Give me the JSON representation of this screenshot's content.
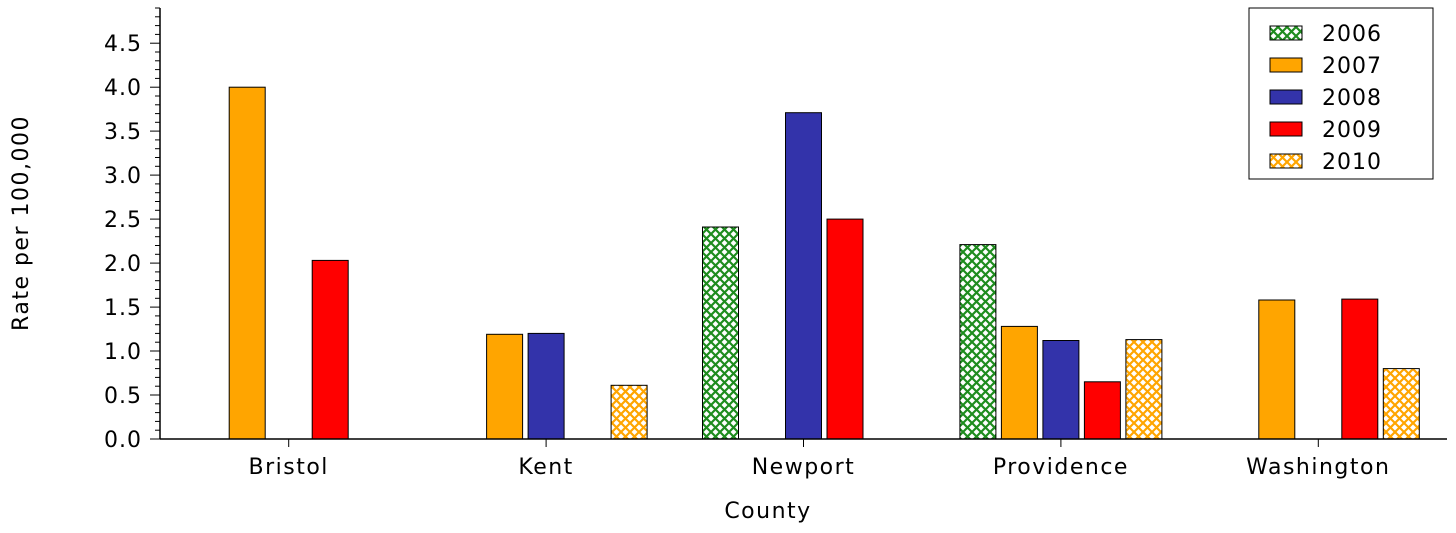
{
  "chart_data": {
    "type": "bar",
    "title": "",
    "xlabel": "County",
    "ylabel": "Rate per 100,000",
    "categories": [
      "Bristol",
      "Kent",
      "Newport",
      "Providence",
      "Washington"
    ],
    "ylim": [
      0,
      4.9
    ],
    "yticks": [
      "0.0",
      "0.5",
      "1.0",
      "1.5",
      "2.0",
      "2.5",
      "3.0",
      "3.5",
      "4.0",
      "4.5"
    ],
    "legend_position": "top-right",
    "grid": false,
    "series": [
      {
        "name": "2006",
        "color": "#1e8c1e",
        "pattern": "crosshatch",
        "values": [
          null,
          null,
          2.41,
          2.21,
          null
        ]
      },
      {
        "name": "2007",
        "color": "#ffa500",
        "pattern": "solid",
        "values": [
          4.0,
          1.19,
          null,
          1.28,
          1.58
        ]
      },
      {
        "name": "2008",
        "color": "#3333aa",
        "pattern": "solid",
        "values": [
          null,
          1.2,
          3.71,
          1.12,
          null
        ]
      },
      {
        "name": "2009",
        "color": "#ff0000",
        "pattern": "solid",
        "values": [
          2.03,
          null,
          2.5,
          0.65,
          1.59
        ]
      },
      {
        "name": "2010",
        "color": "#ffa500",
        "pattern": "crosshatch",
        "values": [
          null,
          0.61,
          null,
          1.13,
          0.8
        ]
      }
    ]
  }
}
